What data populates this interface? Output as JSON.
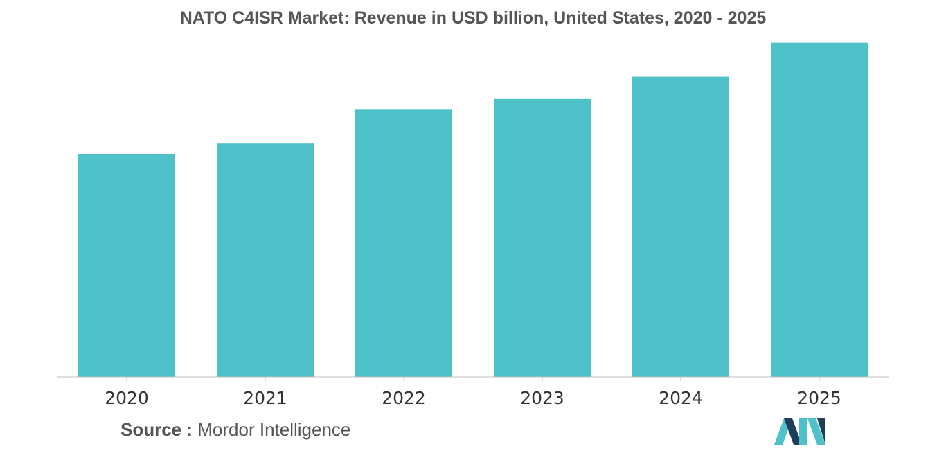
{
  "chart_data": {
    "type": "bar",
    "title": "NATO C4ISR Market: Revenue in USD billion, United States, 2020 - 2025",
    "categories": [
      "2020",
      "2021",
      "2022",
      "2023",
      "2024",
      "2025"
    ],
    "values": [
      2.9,
      3.04,
      3.48,
      3.62,
      3.91,
      4.35
    ],
    "ylim": [
      0,
      4.5
    ],
    "grid": false,
    "bar_color": "#4fc2c9",
    "xlabel": "",
    "ylabel": ""
  },
  "source": {
    "label": "Source :",
    "text": "Mordor Intelligence"
  },
  "logo": {
    "icon": "mordor-intelligence-logo",
    "colors": [
      "#4fc2c9",
      "#1e3f5a"
    ]
  }
}
